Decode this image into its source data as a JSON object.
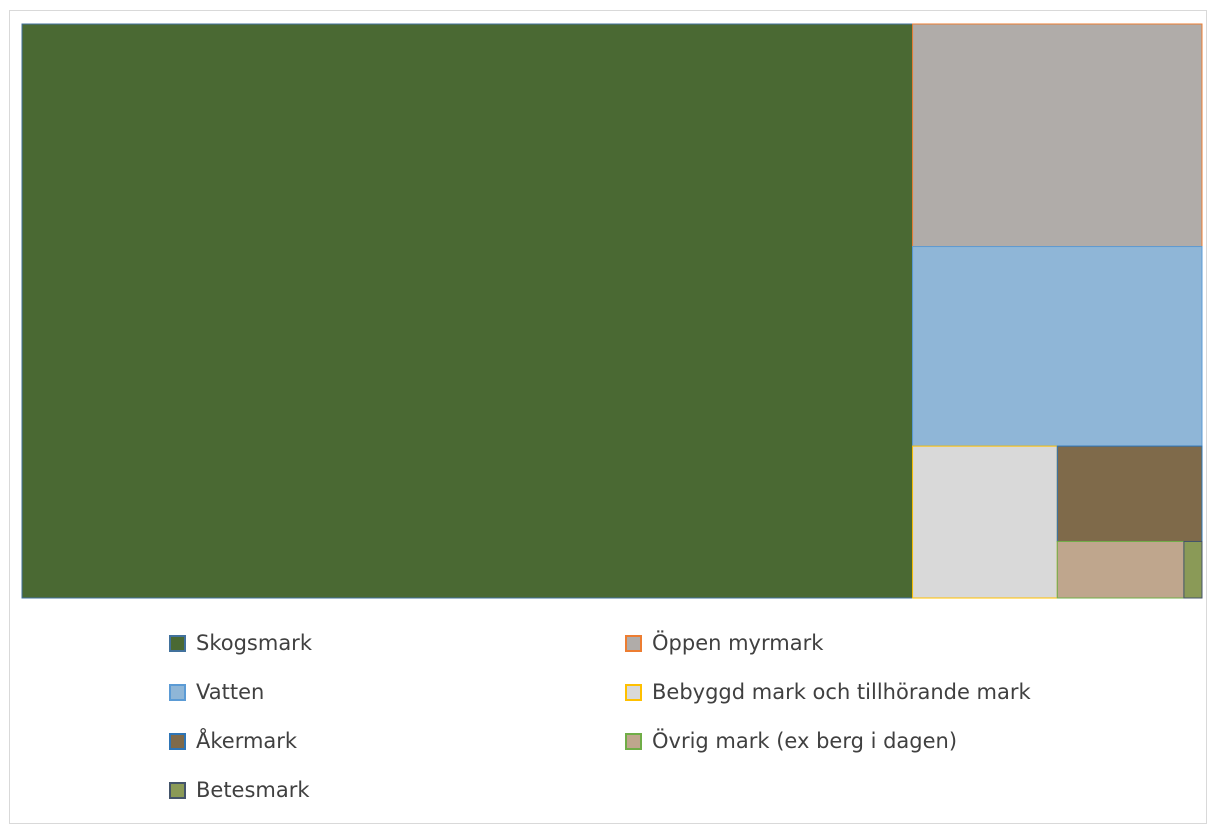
{
  "chart_data": {
    "type": "treemap",
    "title": "",
    "legend_position": "bottom",
    "series": [
      {
        "name": "Skogsmark",
        "value": 1000,
        "color": "#4a6933",
        "border": "#41719c"
      },
      {
        "name": "Öppen myrmark",
        "value": 126,
        "color": "#b0aca9",
        "border": "#ed7d31"
      },
      {
        "name": "Vatten",
        "value": 113,
        "color": "#8fb6d7",
        "border": "#5b9bd5"
      },
      {
        "name": "Bebyggd mark och tillhörande mark",
        "value": 43,
        "color": "#d9d9d9",
        "border": "#ffc000"
      },
      {
        "name": "Åkermark",
        "value": 27,
        "color": "#7f6a4a",
        "border": "#2e75b6"
      },
      {
        "name": "Övrig mark (ex berg i dagen)",
        "value": 14,
        "color": "#bfa68d",
        "border": "#70ad47"
      },
      {
        "name": "Betesmark",
        "value": 2,
        "color": "#8a9a57",
        "border": "#44546a"
      }
    ]
  }
}
